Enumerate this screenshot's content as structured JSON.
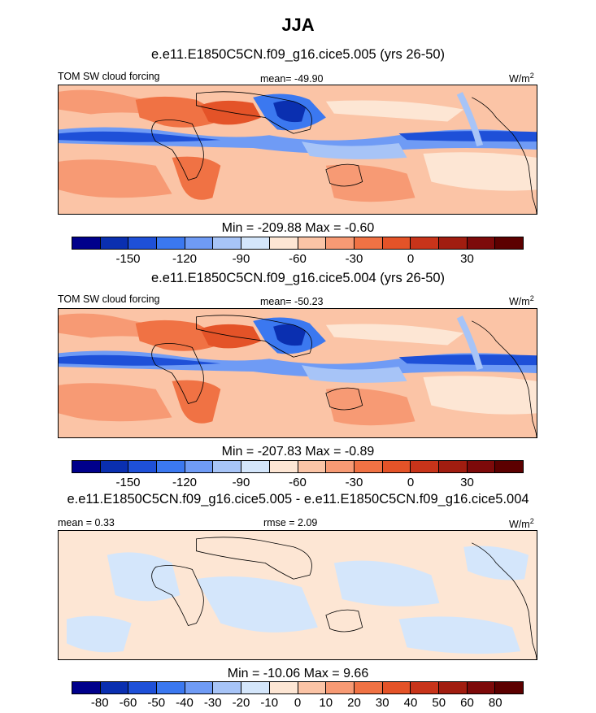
{
  "header": {
    "title": "JJA"
  },
  "colors": {
    "scale12": [
      "#00008b",
      "#0a2fb0",
      "#1e50d8",
      "#3b78f0",
      "#6f9bf5",
      "#a7c4f7",
      "#d4e6fb",
      "#fde6d4",
      "#fbc4a6",
      "#f79a74",
      "#f07244",
      "#e45328",
      "#c8341a",
      "#a11d10",
      "#7d0a0a"
    ],
    "scale16": [
      "#00008b",
      "#0a2fb0",
      "#1e50d8",
      "#3b78f0",
      "#6f9bf5",
      "#a7c4f7",
      "#d4e6fb",
      "#fde6d4",
      "#fbc4a6",
      "#f79a74",
      "#f07244",
      "#e45328",
      "#c8341a",
      "#a11d10",
      "#7d0a0a",
      "#5c0000"
    ]
  },
  "chart_data": [
    {
      "type": "heatmap",
      "title": "e.e11.E1850C5CN.f09_g16.cice5.005 (yrs 26-50)",
      "left_label": "TOM SW cloud forcing",
      "center_label": "mean= -49.90",
      "units": "W/m",
      "units_sup": "2",
      "mean": -49.9,
      "min": -209.88,
      "max": -0.6,
      "minmax_text": "Min = -209.88 Max =  -0.60",
      "colorbar_levels": 16,
      "colorbar_ticks": [
        "-150",
        "-120",
        "-90",
        "-60",
        "-30",
        "0",
        "30"
      ]
    },
    {
      "type": "heatmap",
      "title": "e.e11.E1850C5CN.f09_g16.cice5.004 (yrs 26-50)",
      "left_label": "TOM SW cloud forcing",
      "center_label": "mean= -50.23",
      "units": "W/m",
      "units_sup": "2",
      "mean": -50.23,
      "min": -207.83,
      "max": -0.89,
      "minmax_text": "Min = -207.83 Max =  -0.89",
      "colorbar_levels": 16,
      "colorbar_ticks": [
        "-150",
        "-120",
        "-90",
        "-60",
        "-30",
        "0",
        "30"
      ]
    },
    {
      "type": "heatmap",
      "title": "e.e11.E1850C5CN.f09_g16.cice5.005 - e.e11.E1850C5CN.f09_g16.cice5.004",
      "left_label": "mean =   0.33",
      "center_label": "rmse =   2.09",
      "units": "W/m",
      "units_sup": "2",
      "mean": 0.33,
      "rmse": 2.09,
      "min": -10.06,
      "max": 9.66,
      "minmax_text": "Min = -10.06 Max =   9.66",
      "colorbar_levels": 16,
      "colorbar_ticks": [
        "-80",
        "-60",
        "-50",
        "-40",
        "-30",
        "-20",
        "-10",
        "0",
        "10",
        "20",
        "30",
        "40",
        "50",
        "60",
        "80"
      ]
    }
  ]
}
